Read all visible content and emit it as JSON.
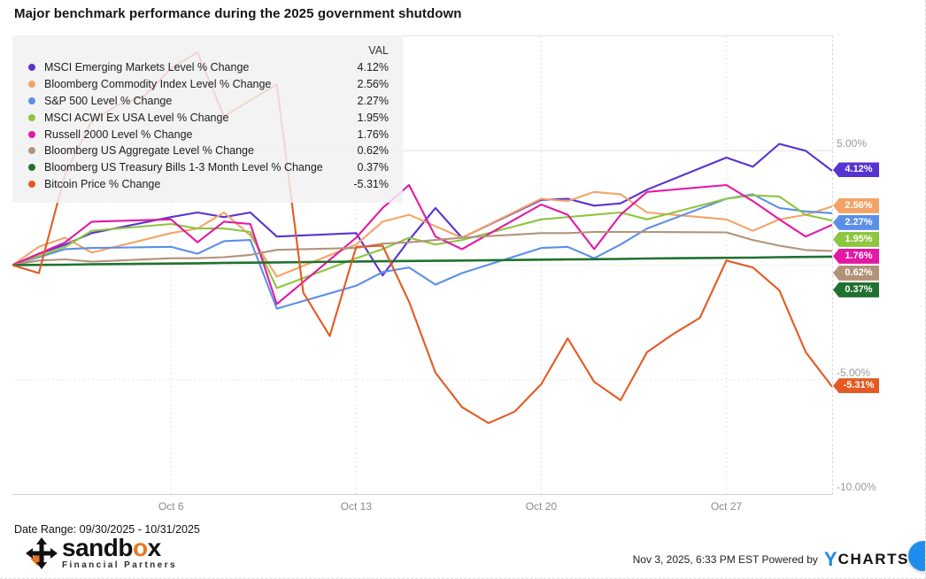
{
  "title": "Major benchmark performance during the 2025 government shutdown",
  "legend": {
    "header_val": "VAL",
    "items": [
      {
        "label": "MSCI Emerging Markets Level % Change",
        "val": "4.12%"
      },
      {
        "label": "Bloomberg Commodity Index Level % Change",
        "val": "2.56%"
      },
      {
        "label": "S&P 500 Level % Change",
        "val": "2.27%"
      },
      {
        "label": "MSCI ACWI Ex USA Level % Change",
        "val": "1.95%"
      },
      {
        "label": "Russell 2000 Level % Change",
        "val": "1.76%"
      },
      {
        "label": "Bloomberg US Aggregate Level % Change",
        "val": "0.62%"
      },
      {
        "label": "Bloomberg US Treasury Bills 1-3 Month Level % Change",
        "val": "0.37%"
      },
      {
        "label": "Bitcoin Price % Change",
        "val": "-5.31%"
      }
    ]
  },
  "y_axis": {
    "labels": [
      {
        "text": "5.00%",
        "value": 5
      },
      {
        "text": "-5.00%",
        "value": -5
      },
      {
        "text": "-10.00%",
        "value": -10
      }
    ]
  },
  "chart_data": {
    "type": "line",
    "x_unit": "calendar days since 09/30/2025",
    "x_range_days": 31,
    "ylim": [
      -10,
      10
    ],
    "grid_h_values": [
      5,
      0,
      -5
    ],
    "x_ticks": [
      {
        "day": 6,
        "label": "Oct 6"
      },
      {
        "day": 13,
        "label": "Oct 13"
      },
      {
        "day": 20,
        "label": "Oct 20"
      },
      {
        "day": 27,
        "label": "Oct 27"
      }
    ],
    "series": [
      {
        "name": "MSCI Emerging Markets Level % Change",
        "color": "#5733d1",
        "final_label": "4.12%",
        "final_value": 4.12,
        "days": [
          0,
          1,
          2,
          3,
          6,
          7,
          8,
          9,
          10,
          13,
          14,
          15,
          16,
          17,
          20,
          21,
          22,
          23,
          24,
          27,
          28,
          29,
          30,
          31
        ],
        "values": [
          0,
          0.5,
          0.9,
          1.4,
          2.1,
          2.3,
          2.1,
          2.3,
          1.25,
          1.4,
          -0.45,
          1.1,
          2.5,
          1.2,
          2.85,
          2.9,
          2.6,
          2.7,
          3.3,
          4.7,
          4.3,
          5.3,
          5.0,
          4.12
        ]
      },
      {
        "name": "Bloomberg Commodity Index Level % Change",
        "color": "#f2a468",
        "final_label": "2.56%",
        "final_value": 2.56,
        "days": [
          0,
          1,
          2,
          3,
          6,
          7,
          8,
          9,
          10,
          13,
          14,
          15,
          16,
          17,
          20,
          21,
          22,
          23,
          24,
          27,
          28,
          29,
          30,
          31
        ],
        "values": [
          0,
          0.8,
          1.2,
          0.55,
          1.4,
          1.6,
          2.3,
          1.3,
          -0.5,
          0.9,
          1.9,
          2.2,
          1.7,
          1.2,
          2.9,
          2.8,
          3.2,
          3.1,
          2.3,
          2.0,
          1.5,
          2.0,
          2.2,
          2.56
        ]
      },
      {
        "name": "S&P 500 Level % Change",
        "color": "#5c8fe8",
        "final_label": "2.27%",
        "final_value": 2.27,
        "days": [
          0,
          1,
          2,
          3,
          6,
          7,
          8,
          9,
          10,
          13,
          14,
          15,
          16,
          17,
          20,
          21,
          22,
          23,
          24,
          27,
          28,
          29,
          30,
          31
        ],
        "values": [
          0,
          0.35,
          0.7,
          0.75,
          0.8,
          0.5,
          1.05,
          1.1,
          -1.9,
          -0.9,
          -0.3,
          -0.1,
          -0.85,
          -0.35,
          0.75,
          0.8,
          0.3,
          0.9,
          1.6,
          2.9,
          3.1,
          2.5,
          2.35,
          2.27
        ]
      },
      {
        "name": "MSCI ACWI Ex USA Level % Change",
        "color": "#8dc63f",
        "final_label": "1.95%",
        "final_value": 1.95,
        "days": [
          0,
          1,
          2,
          3,
          6,
          7,
          8,
          9,
          10,
          13,
          14,
          15,
          16,
          17,
          20,
          21,
          22,
          23,
          24,
          27,
          28,
          29,
          30,
          31
        ],
        "values": [
          0,
          0.4,
          0.8,
          1.5,
          1.8,
          1.6,
          1.6,
          1.45,
          -1.0,
          0.3,
          0.7,
          1.2,
          0.9,
          1.1,
          2.0,
          2.1,
          2.2,
          2.3,
          2.0,
          2.9,
          3.05,
          3.0,
          2.2,
          1.95
        ]
      },
      {
        "name": "Russell 2000 Level % Change",
        "color": "#e318a5",
        "final_label": "1.76%",
        "final_value": 1.76,
        "days": [
          0,
          1,
          2,
          3,
          6,
          7,
          8,
          9,
          10,
          13,
          14,
          15,
          16,
          17,
          20,
          21,
          22,
          23,
          24,
          27,
          28,
          29,
          30,
          31
        ],
        "values": [
          0,
          0.5,
          1.0,
          1.9,
          2.0,
          1.0,
          1.9,
          1.8,
          -1.7,
          1.2,
          2.5,
          3.5,
          1.25,
          0.7,
          2.65,
          2.2,
          0.7,
          2.2,
          3.2,
          3.5,
          2.8,
          2.0,
          1.25,
          1.76
        ]
      },
      {
        "name": "Bloomberg US Aggregate Level % Change",
        "color": "#b2937a",
        "final_label": "0.62%",
        "final_value": 0.62,
        "days": [
          0,
          1,
          2,
          3,
          6,
          7,
          8,
          9,
          10,
          13,
          14,
          15,
          16,
          17,
          20,
          21,
          22,
          23,
          24,
          27,
          28,
          29,
          30,
          31
        ],
        "values": [
          0,
          0.2,
          0.25,
          0.15,
          0.3,
          0.3,
          0.35,
          0.45,
          0.67,
          0.75,
          0.94,
          1.0,
          1.1,
          1.2,
          1.4,
          1.4,
          1.45,
          1.45,
          1.45,
          1.43,
          1.1,
          0.85,
          0.66,
          0.62
        ]
      },
      {
        "name": "Bloomberg US Treasury Bills 1-3 Month Level % Change",
        "color": "#207130",
        "final_label": "0.37%",
        "final_value": 0.37,
        "days": [
          0,
          1,
          2,
          3,
          6,
          7,
          8,
          9,
          10,
          13,
          14,
          15,
          16,
          17,
          20,
          21,
          22,
          23,
          24,
          27,
          28,
          29,
          30,
          31
        ],
        "values": [
          0,
          0.01,
          0.02,
          0.04,
          0.07,
          0.08,
          0.1,
          0.11,
          0.12,
          0.16,
          0.17,
          0.18,
          0.19,
          0.2,
          0.24,
          0.25,
          0.26,
          0.27,
          0.29,
          0.32,
          0.33,
          0.35,
          0.36,
          0.37
        ]
      },
      {
        "name": "Bitcoin Price % Change",
        "color": "#e45a22",
        "final_label": "-5.31%",
        "final_value": -5.31,
        "days": [
          0,
          1,
          2,
          3,
          4,
          5,
          6,
          7,
          8,
          9,
          10,
          11,
          12,
          13,
          14,
          15,
          16,
          17,
          18,
          19,
          20,
          21,
          22,
          23,
          24,
          25,
          26,
          27,
          28,
          29,
          30,
          31
        ],
        "values": [
          0,
          -0.35,
          4.0,
          6.3,
          7.0,
          7.4,
          8.6,
          9.3,
          6.5,
          7.2,
          7.9,
          -1.2,
          -3.1,
          0.8,
          0.85,
          -1.6,
          -4.7,
          -6.2,
          -6.9,
          -6.4,
          -5.2,
          -3.2,
          -5.1,
          -5.9,
          -3.8,
          -3.0,
          -2.3,
          0.2,
          -0.1,
          -1.1,
          -3.8,
          -5.31
        ]
      }
    ]
  },
  "footer": {
    "date_range": "Date Range: 09/30/2025 - 10/31/2025",
    "sandbox_pre": "sandb",
    "sandbox_o": "o",
    "sandbox_post": "x",
    "sandbox_sub": "Financial Partners",
    "timestamp": "Nov 3, 2025, 6:33 PM EST Powered by",
    "ycharts_y": "Y",
    "ycharts_rest": "CHARTS"
  },
  "colors": {
    "accent_orange": "#e87722",
    "ycharts_blue": "#1d86ee",
    "chat_bubble_blue": "#1f8ded"
  }
}
